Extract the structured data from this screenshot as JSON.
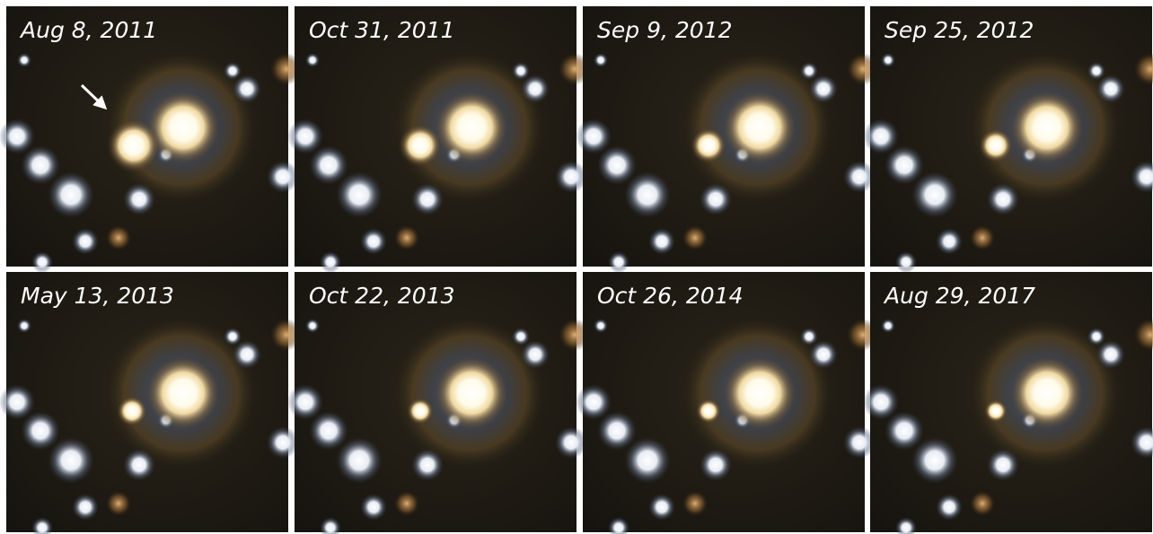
{
  "panels": [
    {
      "label": "Aug 8, 2011"
    },
    {
      "label": "Oct 31, 2011"
    },
    {
      "label": "Sep 9, 2012"
    },
    {
      "label": "Sep 25, 2012"
    },
    {
      "label": "May 13, 2013"
    },
    {
      "label": "Oct 22, 2013"
    },
    {
      "label": "Oct 26, 2014"
    },
    {
      "label": "Aug 29, 2017"
    }
  ]
}
